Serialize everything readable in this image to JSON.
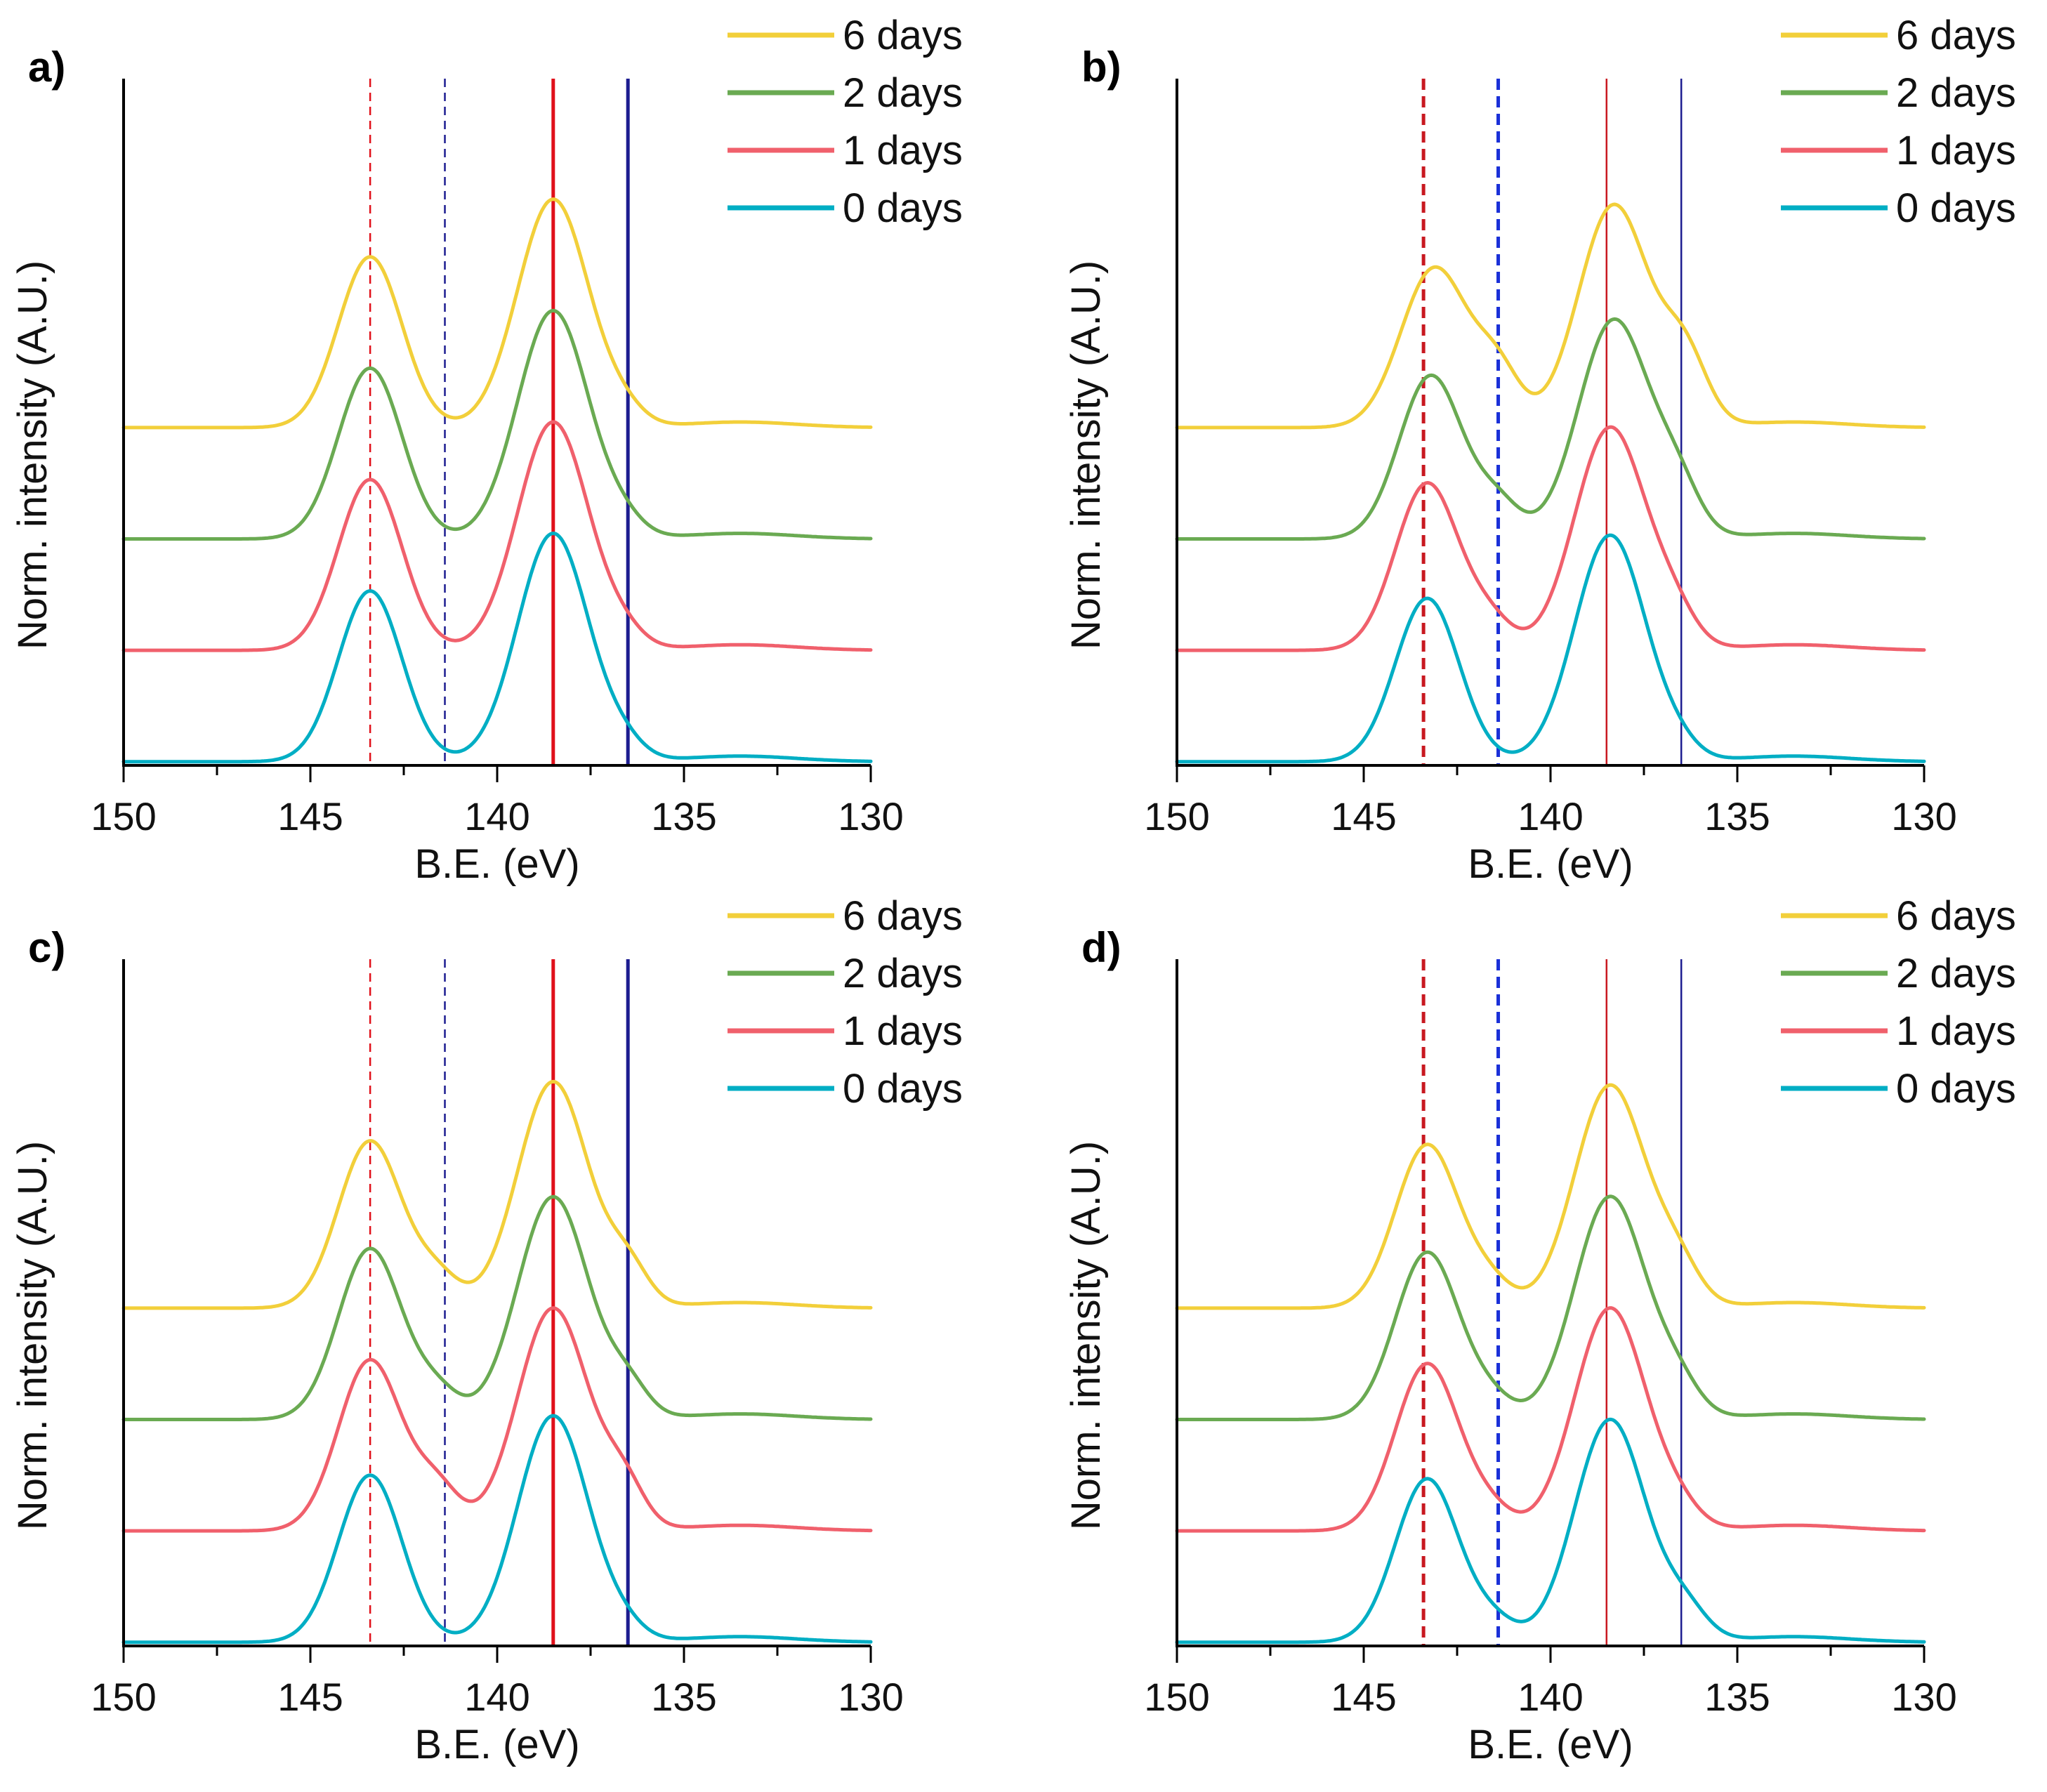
{
  "colors": {
    "six_days": "#f2cf3a",
    "two_days": "#6aaa52",
    "one_days": "#f0606c",
    "zero_days": "#00aec4",
    "ref_red": "#e0101a",
    "ref_darkred": "#c81820",
    "ref_navy": "#1c1c90",
    "ref_blue": "#1a30d8",
    "axis": "#000000"
  },
  "chart_data": [
    {
      "type": "line",
      "panel": "a)",
      "xlabel": "B.E. (eV)",
      "ylabel": "Norm. intensity (A.U.)",
      "xlim": [
        150,
        130
      ],
      "xticks": [
        "150",
        "145",
        "140",
        "135",
        "130"
      ],
      "ylim": [
        0,
        3.7
      ],
      "yticks_shown": false,
      "legend_position": "top-right",
      "reference_lines": [
        {
          "x": 143.4,
          "style": "dashed",
          "color": "#e0101a",
          "width": "thin"
        },
        {
          "x": 141.4,
          "style": "dashed",
          "color": "#1c1c90",
          "width": "thin"
        },
        {
          "x": 138.5,
          "style": "solid",
          "color": "#e0101a",
          "width": "thick"
        },
        {
          "x": 136.5,
          "style": "solid",
          "color": "#1c1c90",
          "width": "thick"
        }
      ],
      "series": [
        {
          "name": "6 days",
          "color": "#f2cf3a",
          "offset": 1.8,
          "peaks": [
            {
              "c": 143.4,
              "h": 0.92,
              "w": 0.85
            },
            {
              "c": 138.5,
              "h": 1.23,
              "w": 0.95
            },
            {
              "c": 136.6,
              "h": 0.07,
              "w": 0.55
            }
          ]
        },
        {
          "name": "2 days",
          "color": "#6aaa52",
          "offset": 1.2,
          "peaks": [
            {
              "c": 143.4,
              "h": 0.92,
              "w": 0.85
            },
            {
              "c": 138.5,
              "h": 1.23,
              "w": 0.95
            },
            {
              "c": 136.6,
              "h": 0.07,
              "w": 0.55
            }
          ]
        },
        {
          "name": "1 days",
          "color": "#f0606c",
          "offset": 0.6,
          "peaks": [
            {
              "c": 143.4,
              "h": 0.92,
              "w": 0.85
            },
            {
              "c": 138.5,
              "h": 1.23,
              "w": 0.95
            },
            {
              "c": 136.6,
              "h": 0.07,
              "w": 0.55
            }
          ]
        },
        {
          "name": "0 days",
          "color": "#00aec4",
          "offset": 0.0,
          "peaks": [
            {
              "c": 143.4,
              "h": 0.92,
              "w": 0.85
            },
            {
              "c": 138.5,
              "h": 1.23,
              "w": 0.95
            },
            {
              "c": 136.6,
              "h": 0.07,
              "w": 0.55
            }
          ]
        }
      ]
    },
    {
      "type": "line",
      "panel": "b)",
      "xlabel": "B.E. (eV)",
      "ylabel": "Norm. intensity (A.U.)",
      "xlim": [
        150,
        130
      ],
      "xticks": [
        "150",
        "145",
        "140",
        "135",
        "130"
      ],
      "ylim": [
        0,
        3.7
      ],
      "yticks_shown": false,
      "legend_position": "top-right",
      "reference_lines": [
        {
          "x": 143.4,
          "style": "dashed",
          "color": "#c81820",
          "width": "thick"
        },
        {
          "x": 141.4,
          "style": "dashed",
          "color": "#1a30d8",
          "width": "thick"
        },
        {
          "x": 138.5,
          "style": "solid",
          "color": "#c81820",
          "width": "thin"
        },
        {
          "x": 136.5,
          "style": "solid",
          "color": "#1c1c90",
          "width": "thin"
        }
      ],
      "series": [
        {
          "name": "6 days",
          "color": "#f2cf3a",
          "offset": 1.8,
          "peaks": [
            {
              "c": 143.1,
              "h": 0.86,
              "w": 0.9
            },
            {
              "c": 141.4,
              "h": 0.28,
              "w": 0.6
            },
            {
              "c": 138.3,
              "h": 1.2,
              "w": 0.95
            },
            {
              "c": 136.4,
              "h": 0.36,
              "w": 0.6
            }
          ]
        },
        {
          "name": "2 days",
          "color": "#6aaa52",
          "offset": 1.2,
          "peaks": [
            {
              "c": 143.2,
              "h": 0.88,
              "w": 0.85
            },
            {
              "c": 141.4,
              "h": 0.18,
              "w": 0.6
            },
            {
              "c": 138.3,
              "h": 1.18,
              "w": 0.95
            },
            {
              "c": 136.6,
              "h": 0.24,
              "w": 0.6
            }
          ]
        },
        {
          "name": "1 days",
          "color": "#f0606c",
          "offset": 0.6,
          "peaks": [
            {
              "c": 143.3,
              "h": 0.9,
              "w": 0.85
            },
            {
              "c": 141.6,
              "h": 0.14,
              "w": 0.6
            },
            {
              "c": 138.4,
              "h": 1.2,
              "w": 0.95
            },
            {
              "c": 136.7,
              "h": 0.16,
              "w": 0.6
            }
          ]
        },
        {
          "name": "0 days",
          "color": "#00aec4",
          "offset": 0.0,
          "peaks": [
            {
              "c": 143.3,
              "h": 0.88,
              "w": 0.85
            },
            {
              "c": 138.4,
              "h": 1.22,
              "w": 0.95
            },
            {
              "c": 136.6,
              "h": 0.06,
              "w": 0.55
            }
          ]
        }
      ]
    },
    {
      "type": "line",
      "panel": "c)",
      "xlabel": "B.E. (eV)",
      "ylabel": "Norm. intensity (A.U.)",
      "xlim": [
        150,
        130
      ],
      "xticks": [
        "150",
        "145",
        "140",
        "135",
        "130"
      ],
      "ylim": [
        0,
        3.7
      ],
      "yticks_shown": false,
      "legend_position": "top-right",
      "reference_lines": [
        {
          "x": 143.4,
          "style": "dashed",
          "color": "#e0101a",
          "width": "thin"
        },
        {
          "x": 141.4,
          "style": "dashed",
          "color": "#1c1c90",
          "width": "thin"
        },
        {
          "x": 138.5,
          "style": "solid",
          "color": "#e0101a",
          "width": "thick"
        },
        {
          "x": 136.5,
          "style": "solid",
          "color": "#1c1c90",
          "width": "thick"
        }
      ],
      "series": [
        {
          "name": "6 days",
          "color": "#f2cf3a",
          "offset": 1.8,
          "peaks": [
            {
              "c": 143.4,
              "h": 0.9,
              "w": 0.85
            },
            {
              "c": 141.6,
              "h": 0.16,
              "w": 0.6
            },
            {
              "c": 138.5,
              "h": 1.22,
              "w": 0.95
            },
            {
              "c": 136.5,
              "h": 0.2,
              "w": 0.55
            }
          ]
        },
        {
          "name": "2 days",
          "color": "#6aaa52",
          "offset": 1.2,
          "peaks": [
            {
              "c": 143.4,
              "h": 0.92,
              "w": 0.85
            },
            {
              "c": 141.6,
              "h": 0.14,
              "w": 0.6
            },
            {
              "c": 138.5,
              "h": 1.2,
              "w": 0.95
            },
            {
              "c": 136.5,
              "h": 0.16,
              "w": 0.55
            }
          ]
        },
        {
          "name": "1 days",
          "color": "#f0606c",
          "offset": 0.6,
          "peaks": [
            {
              "c": 143.4,
              "h": 0.92,
              "w": 0.85
            },
            {
              "c": 141.6,
              "h": 0.22,
              "w": 0.6
            },
            {
              "c": 138.5,
              "h": 1.2,
              "w": 0.95
            },
            {
              "c": 136.6,
              "h": 0.22,
              "w": 0.55
            }
          ]
        },
        {
          "name": "0 days",
          "color": "#00aec4",
          "offset": 0.0,
          "peaks": [
            {
              "c": 143.4,
              "h": 0.9,
              "w": 0.85
            },
            {
              "c": 138.5,
              "h": 1.22,
              "w": 0.95
            },
            {
              "c": 136.6,
              "h": 0.06,
              "w": 0.55
            }
          ]
        }
      ]
    },
    {
      "type": "line",
      "panel": "d)",
      "xlabel": "B.E. (eV)",
      "ylabel": "Norm. intensity (A.U.)",
      "xlim": [
        150,
        130
      ],
      "xticks": [
        "150",
        "145",
        "140",
        "135",
        "130"
      ],
      "ylim": [
        0,
        3.7
      ],
      "yticks_shown": false,
      "legend_position": "top-right",
      "reference_lines": [
        {
          "x": 143.4,
          "style": "dashed",
          "color": "#c81820",
          "width": "thick"
        },
        {
          "x": 141.4,
          "style": "dashed",
          "color": "#1a30d8",
          "width": "thick"
        },
        {
          "x": 138.5,
          "style": "solid",
          "color": "#c81820",
          "width": "thin"
        },
        {
          "x": 136.5,
          "style": "solid",
          "color": "#1c1c90",
          "width": "thin"
        }
      ],
      "series": [
        {
          "name": "6 days",
          "color": "#f2cf3a",
          "offset": 1.8,
          "peaks": [
            {
              "c": 143.3,
              "h": 0.88,
              "w": 0.85
            },
            {
              "c": 141.6,
              "h": 0.12,
              "w": 0.6
            },
            {
              "c": 138.4,
              "h": 1.2,
              "w": 0.95
            },
            {
              "c": 136.6,
              "h": 0.2,
              "w": 0.6
            }
          ]
        },
        {
          "name": "2 days",
          "color": "#6aaa52",
          "offset": 1.2,
          "peaks": [
            {
              "c": 143.3,
              "h": 0.9,
              "w": 0.85
            },
            {
              "c": 141.6,
              "h": 0.1,
              "w": 0.6
            },
            {
              "c": 138.4,
              "h": 1.2,
              "w": 0.95
            },
            {
              "c": 136.6,
              "h": 0.16,
              "w": 0.6
            }
          ]
        },
        {
          "name": "1 days",
          "color": "#f0606c",
          "offset": 0.6,
          "peaks": [
            {
              "c": 143.3,
              "h": 0.9,
              "w": 0.85
            },
            {
              "c": 141.6,
              "h": 0.1,
              "w": 0.6
            },
            {
              "c": 138.4,
              "h": 1.2,
              "w": 0.95
            },
            {
              "c": 136.6,
              "h": 0.1,
              "w": 0.6
            }
          ]
        },
        {
          "name": "0 days",
          "color": "#00aec4",
          "offset": 0.0,
          "peaks": [
            {
              "c": 143.3,
              "h": 0.88,
              "w": 0.85
            },
            {
              "c": 141.5,
              "h": 0.1,
              "w": 0.6
            },
            {
              "c": 138.4,
              "h": 1.2,
              "w": 0.95
            },
            {
              "c": 136.4,
              "h": 0.16,
              "w": 0.6
            }
          ]
        }
      ]
    }
  ]
}
